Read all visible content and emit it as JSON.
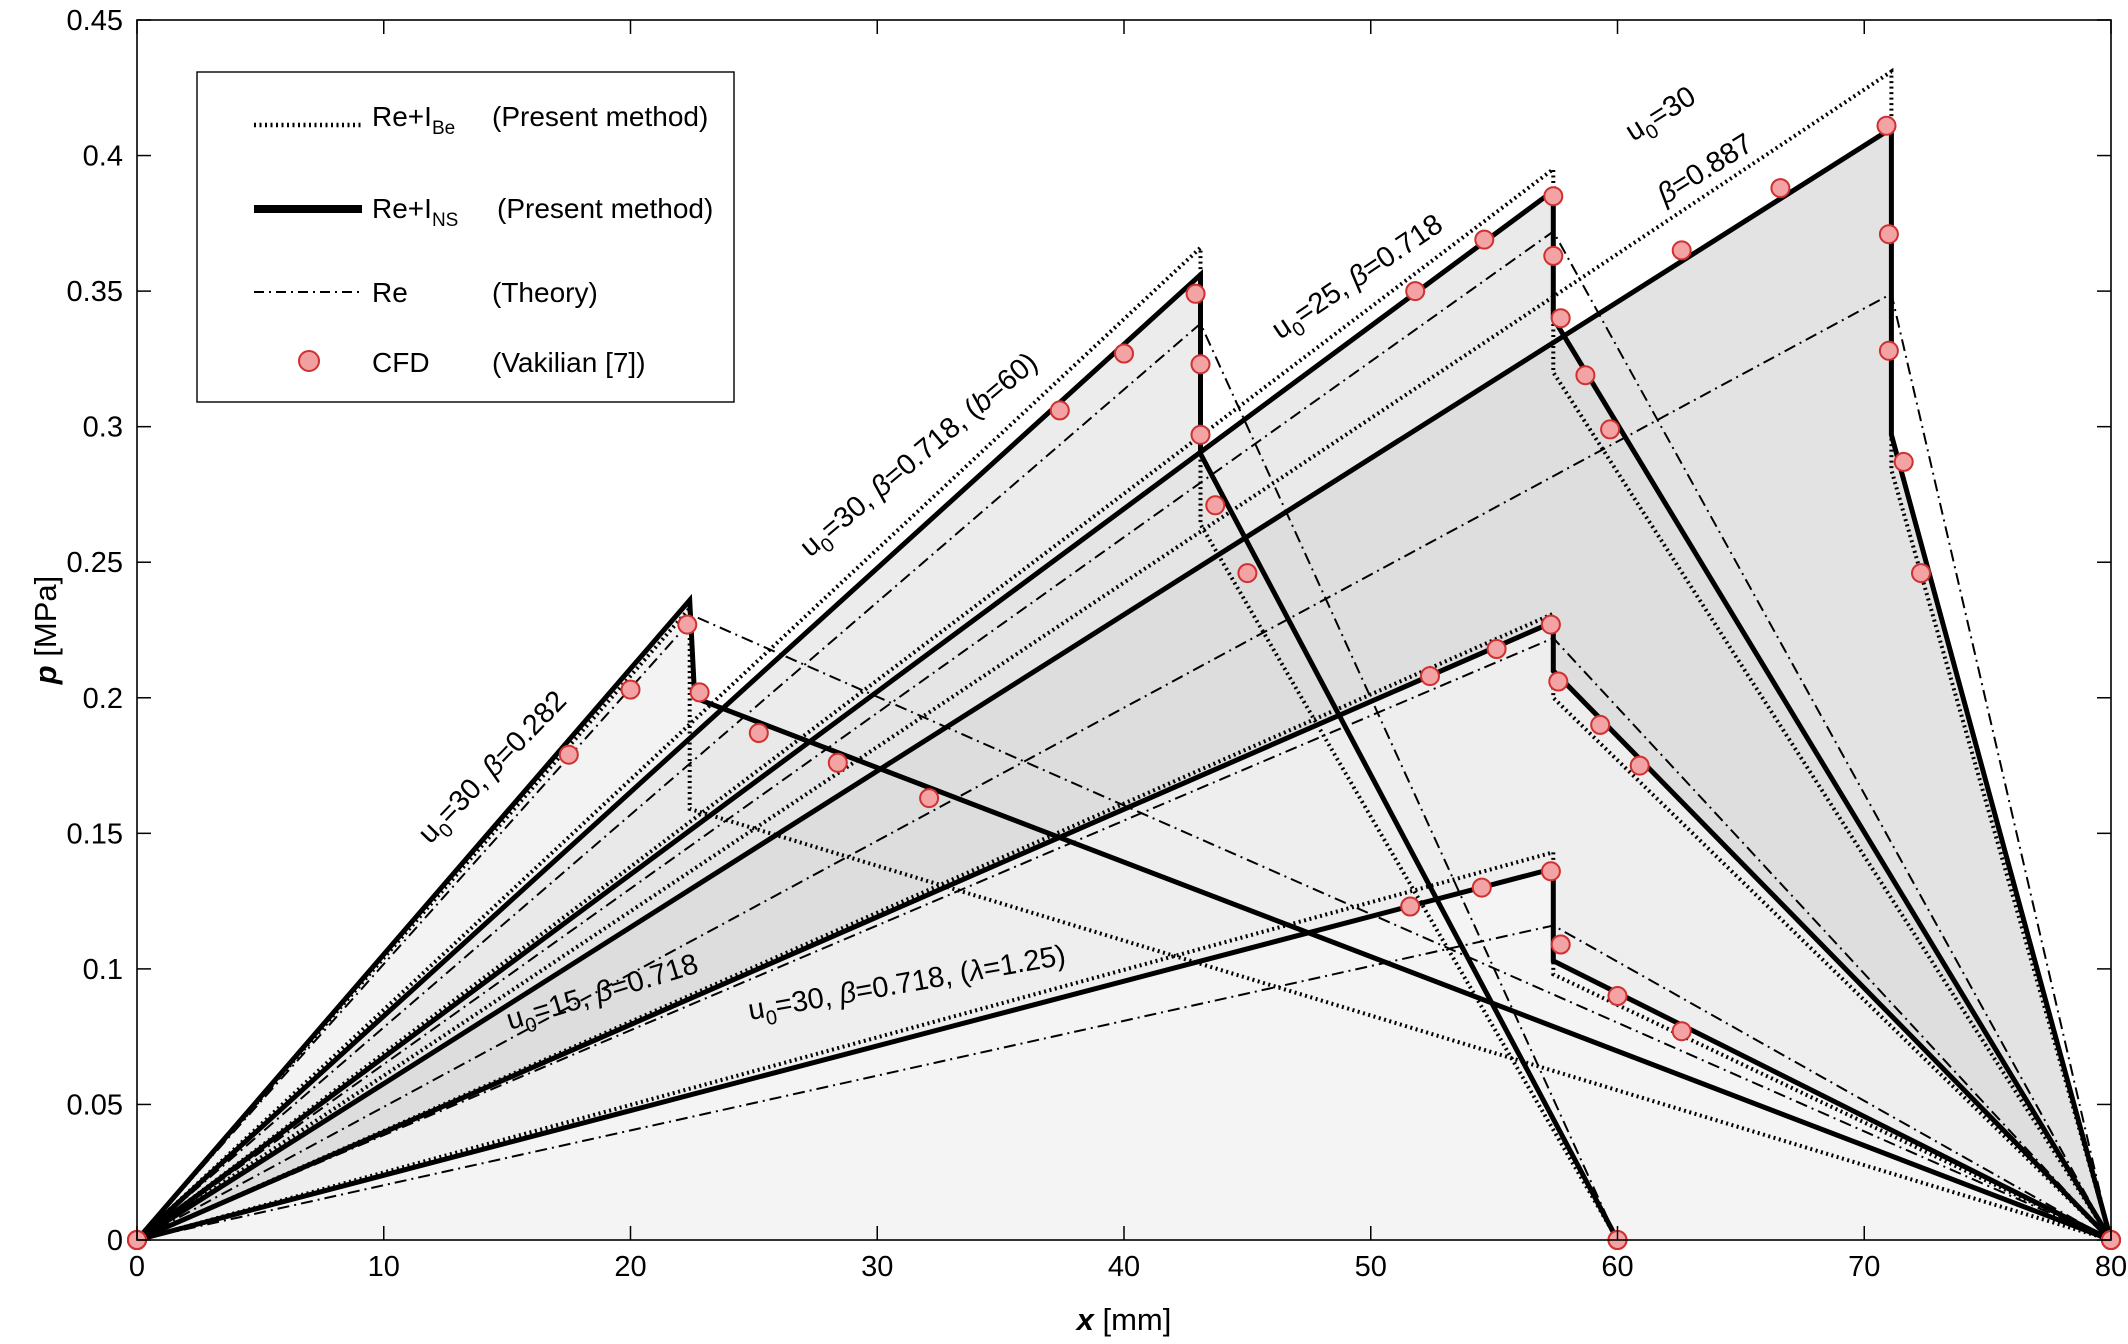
{
  "chart_data": {
    "type": "line",
    "xlabel": {
      "symbol": "x",
      "unit": "[mm]"
    },
    "ylabel": {
      "symbol": "p",
      "unit": "[MPa]"
    },
    "xlim": [
      0,
      80
    ],
    "ylim": [
      0,
      0.45
    ],
    "xticks": [
      0,
      10,
      20,
      30,
      40,
      50,
      60,
      70,
      80
    ],
    "yticks": [
      0,
      0.05,
      0.1,
      0.15,
      0.2,
      0.25,
      0.3,
      0.35,
      0.4,
      0.45
    ],
    "xtick_labels": [
      "0",
      "10",
      "20",
      "30",
      "40",
      "50",
      "60",
      "70",
      "80"
    ],
    "ytick_labels": [
      "0",
      "0.05",
      "0.1",
      "0.15",
      "0.2",
      "0.25",
      "0.3",
      "0.35",
      "0.4",
      "0.45"
    ],
    "grid": false,
    "legend": {
      "placement": "top-left",
      "entries": [
        {
          "main": "Re+I",
          "sub": "Be",
          "desc": "(Present method)",
          "style": "dotted"
        },
        {
          "main": "Re+I",
          "sub": "NS",
          "desc": "(Present method)",
          "style": "solid-thick"
        },
        {
          "main": "Re",
          "sub": "",
          "desc": "(Theory)",
          "style": "dashdot"
        },
        {
          "main": "CFD",
          "sub": "",
          "desc": "(Vakilian [7])",
          "style": "marker"
        }
      ]
    },
    "annotations": [
      "u0=30, β=0.282",
      "u0=30, β=0.718, (b=60)",
      "u0=25, β=0.718",
      "u0=30 β=0.887",
      "u0=15, β=0.718",
      "u0=30, β=0.718, (λ=1.25)"
    ],
    "cases": [
      {
        "name": "u0=30, β=0.282",
        "fill": "#efefef",
        "be": [
          [
            0,
            0
          ],
          [
            22.4,
            0.233
          ],
          [
            22.4,
            0.159
          ],
          [
            80,
            0
          ]
        ],
        "ns": [
          [
            0,
            0
          ],
          [
            22.4,
            0.236
          ],
          [
            22.6,
            0.2
          ],
          [
            80,
            0
          ]
        ],
        "re": [
          [
            0,
            0
          ],
          [
            22.6,
            0.23
          ],
          [
            80,
            0
          ]
        ],
        "cfd": [
          [
            0,
            0
          ],
          [
            17.5,
            0.179
          ],
          [
            20,
            0.203
          ],
          [
            22.3,
            0.227
          ],
          [
            22.8,
            0.202
          ],
          [
            25.2,
            0.187
          ],
          [
            28.4,
            0.176
          ],
          [
            32.1,
            0.163
          ],
          [
            80,
            0
          ]
        ]
      },
      {
        "name": "u0=30, β=0.718, (b=60)",
        "fill": "#e6e6e6",
        "be": [
          [
            0,
            0
          ],
          [
            43.1,
            0.366
          ],
          [
            43.1,
            0.264
          ],
          [
            60,
            0
          ]
        ],
        "ns": [
          [
            0,
            0
          ],
          [
            43.1,
            0.356
          ],
          [
            43.1,
            0.29
          ],
          [
            60,
            0
          ]
        ],
        "re": [
          [
            0,
            0
          ],
          [
            43.1,
            0.338
          ],
          [
            60,
            0
          ]
        ],
        "cfd": [
          [
            0,
            0
          ],
          [
            37.4,
            0.306
          ],
          [
            40,
            0.327
          ],
          [
            42.9,
            0.349
          ],
          [
            43.1,
            0.323
          ],
          [
            43.1,
            0.297
          ],
          [
            43.7,
            0.271
          ],
          [
            45,
            0.246
          ],
          [
            60,
            0
          ]
        ]
      },
      {
        "name": "u0=25, β=0.718",
        "fill": "#e3e3e3",
        "be": [
          [
            0,
            0
          ],
          [
            57.4,
            0.395
          ],
          [
            57.4,
            0.32
          ],
          [
            80,
            0
          ]
        ],
        "ns": [
          [
            0,
            0
          ],
          [
            57.4,
            0.387
          ],
          [
            57.4,
            0.34
          ],
          [
            80,
            0
          ]
        ],
        "re": [
          [
            0,
            0
          ],
          [
            57.4,
            0.372
          ],
          [
            80,
            0
          ]
        ],
        "cfd": [
          [
            0,
            0
          ],
          [
            51.8,
            0.35
          ],
          [
            54.6,
            0.369
          ],
          [
            57.4,
            0.385
          ],
          [
            57.4,
            0.363
          ],
          [
            57.7,
            0.34
          ],
          [
            58.7,
            0.319
          ],
          [
            59.7,
            0.299
          ],
          [
            80,
            0
          ]
        ]
      },
      {
        "name": "u0=30 β=0.887",
        "fill": "#dadada",
        "be": [
          [
            0,
            0
          ],
          [
            71.1,
            0.431
          ],
          [
            71.1,
            0.284
          ],
          [
            80,
            0
          ]
        ],
        "ns": [
          [
            0,
            0
          ],
          [
            71.1,
            0.41
          ],
          [
            71.1,
            0.297
          ],
          [
            80,
            0
          ]
        ],
        "re": [
          [
            0,
            0
          ],
          [
            71.1,
            0.349
          ],
          [
            80,
            0
          ]
        ],
        "cfd": [
          [
            0,
            0
          ],
          [
            62.6,
            0.365
          ],
          [
            66.6,
            0.388
          ],
          [
            70.9,
            0.411
          ],
          [
            71,
            0.371
          ],
          [
            71,
            0.328
          ],
          [
            71.6,
            0.287
          ],
          [
            72.3,
            0.246
          ],
          [
            80,
            0
          ]
        ]
      },
      {
        "name": "u0=15, β=0.718",
        "fill": "#f3f3f3",
        "be": [
          [
            0,
            0
          ],
          [
            57.4,
            0.231
          ],
          [
            57.4,
            0.2
          ],
          [
            80,
            0
          ]
        ],
        "ns": [
          [
            0,
            0
          ],
          [
            57.4,
            0.228
          ],
          [
            57.4,
            0.21
          ],
          [
            80,
            0
          ]
        ],
        "re": [
          [
            0,
            0
          ],
          [
            57.4,
            0.222
          ],
          [
            80,
            0
          ]
        ],
        "cfd": [
          [
            0,
            0
          ],
          [
            52.4,
            0.208
          ],
          [
            55.1,
            0.218
          ],
          [
            57.3,
            0.227
          ],
          [
            57.6,
            0.206
          ],
          [
            59.3,
            0.19
          ],
          [
            60.9,
            0.175
          ],
          [
            80,
            0
          ]
        ]
      },
      {
        "name": "u0=30, β=0.718, (λ=1.25)",
        "fill": "#f6f6f6",
        "be": [
          [
            0,
            0
          ],
          [
            57.4,
            0.143
          ],
          [
            57.4,
            0.098
          ],
          [
            80,
            0
          ]
        ],
        "ns": [
          [
            0,
            0
          ],
          [
            57.4,
            0.137
          ],
          [
            57.4,
            0.103
          ],
          [
            80,
            0
          ]
        ],
        "re": [
          [
            0,
            0
          ],
          [
            57.4,
            0.116
          ],
          [
            80,
            0
          ]
        ],
        "cfd": [
          [
            0,
            0
          ],
          [
            51.6,
            0.123
          ],
          [
            54.5,
            0.13
          ],
          [
            57.3,
            0.136
          ],
          [
            57.7,
            0.109
          ],
          [
            60,
            0.09
          ],
          [
            62.6,
            0.077
          ],
          [
            60,
            0
          ],
          [
            80,
            0
          ]
        ]
      }
    ]
  }
}
